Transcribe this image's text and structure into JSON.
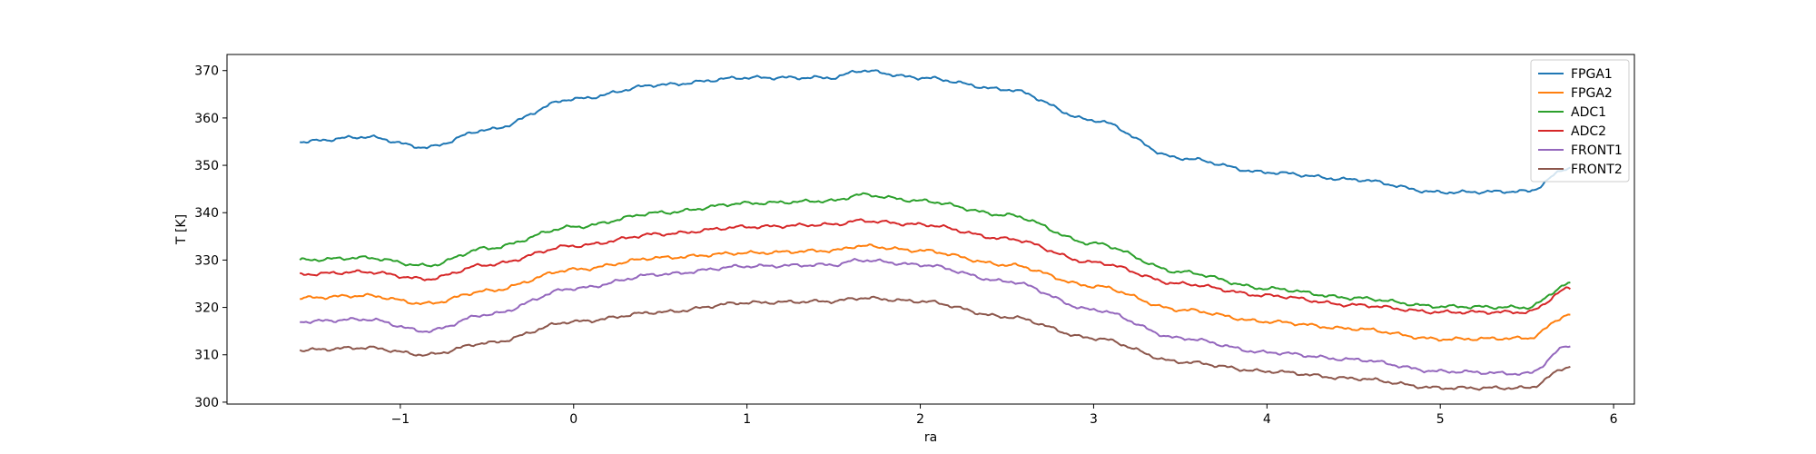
{
  "chart_data": {
    "type": "line",
    "title": "",
    "xlabel": "ra",
    "ylabel": "T [K]",
    "xlim": [
      -2.0,
      6.12
    ],
    "ylim": [
      299.6,
      373.4
    ],
    "xticks": [
      -1,
      0,
      1,
      2,
      3,
      4,
      5,
      6
    ],
    "yticks": [
      300,
      310,
      320,
      330,
      340,
      350,
      360,
      370
    ],
    "grid": false,
    "legend": "top-right",
    "x": [
      -1.58,
      -1.2,
      -0.85,
      -0.5,
      0.0,
      0.5,
      1.0,
      1.5,
      1.65,
      2.0,
      2.5,
      3.0,
      3.5,
      4.0,
      4.5,
      5.0,
      5.5,
      5.75
    ],
    "series": [
      {
        "name": "FPGA1",
        "color": "#1f77b4",
        "values": [
          355.0,
          356.0,
          353.8,
          357.5,
          364.0,
          367.0,
          368.5,
          368.5,
          370.0,
          368.5,
          366.0,
          359.5,
          351.5,
          348.5,
          347.0,
          344.3,
          344.5,
          349.5
        ]
      },
      {
        "name": "FPGA2",
        "color": "#ff7f0e",
        "values": [
          322.0,
          322.5,
          320.8,
          323.5,
          328.0,
          330.5,
          331.5,
          332.0,
          333.0,
          332.0,
          329.0,
          324.5,
          319.5,
          317.0,
          315.5,
          313.3,
          313.5,
          318.5
        ]
      },
      {
        "name": "ADC1",
        "color": "#2ca02c",
        "values": [
          330.0,
          330.5,
          328.8,
          332.5,
          337.0,
          340.0,
          342.0,
          342.5,
          343.8,
          342.5,
          339.5,
          333.5,
          327.5,
          324.0,
          322.0,
          320.2,
          320.0,
          325.0
        ]
      },
      {
        "name": "ADC2",
        "color": "#d62728",
        "values": [
          327.0,
          327.5,
          326.0,
          329.0,
          333.0,
          335.5,
          337.0,
          337.5,
          338.3,
          337.5,
          334.5,
          329.5,
          325.0,
          322.5,
          320.5,
          319.0,
          319.0,
          324.0
        ]
      },
      {
        "name": "FRONT1",
        "color": "#9467bd",
        "values": [
          317.0,
          317.5,
          315.0,
          318.5,
          324.0,
          327.0,
          328.7,
          329.0,
          330.0,
          329.0,
          325.5,
          319.5,
          313.5,
          310.5,
          309.0,
          306.5,
          306.0,
          312.0
        ]
      },
      {
        "name": "FRONT2",
        "color": "#8c564b",
        "values": [
          311.0,
          311.5,
          310.0,
          312.5,
          317.0,
          319.0,
          321.0,
          321.3,
          322.0,
          321.3,
          318.0,
          313.5,
          308.5,
          306.5,
          305.0,
          303.0,
          303.0,
          307.5
        ]
      }
    ]
  }
}
